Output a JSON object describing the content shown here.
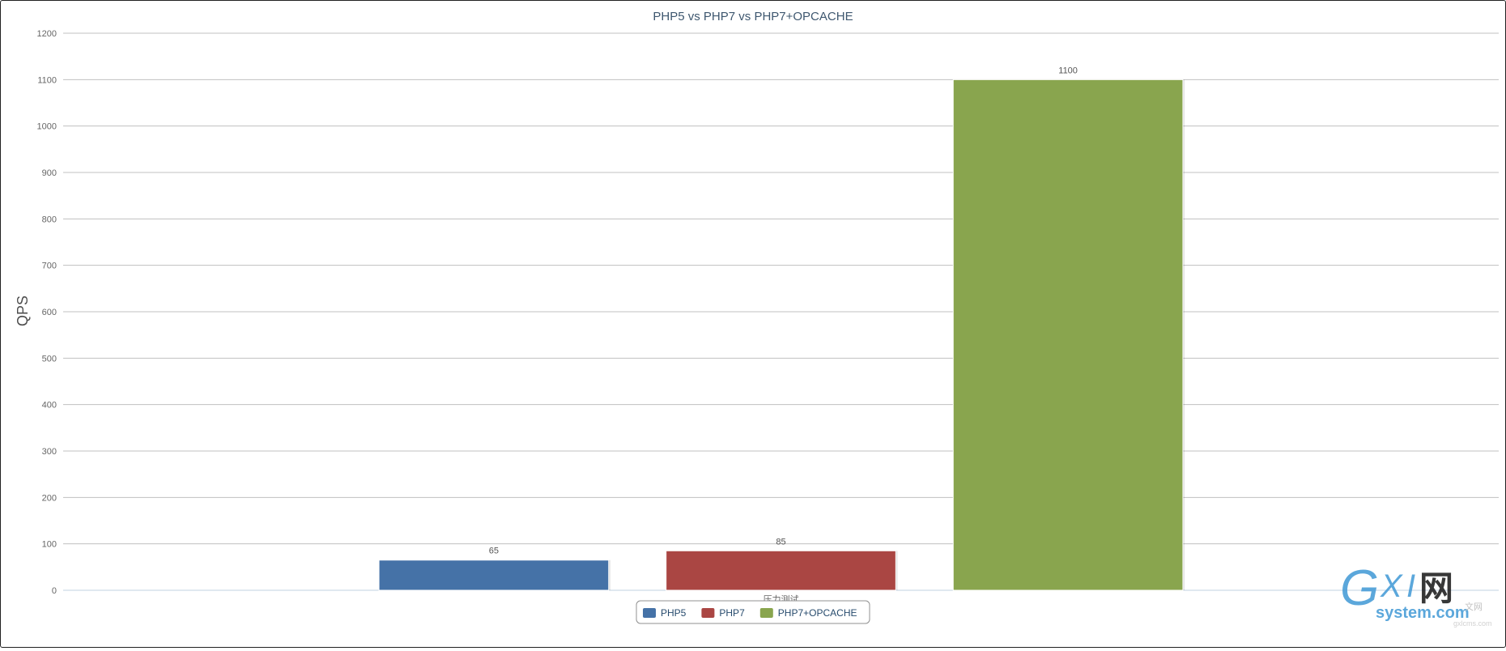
{
  "chart_data": {
    "type": "bar",
    "title": "PHP5 vs PHP7 vs PHP7+OPCACHE",
    "ylabel": "QPS",
    "xlabel": "",
    "categories": [
      "压力测试"
    ],
    "series": [
      {
        "name": "PHP5",
        "values": [
          65
        ],
        "color": "#4572A7"
      },
      {
        "name": "PHP7",
        "values": [
          85
        ],
        "color": "#AA4643"
      },
      {
        "name": "PHP7+OPCACHE",
        "values": [
          1100
        ],
        "color": "#89A54E"
      }
    ],
    "ylim": [
      0,
      1200
    ],
    "yticks": [
      0,
      100,
      200,
      300,
      400,
      500,
      600,
      700,
      800,
      900,
      1000,
      1100,
      1200
    ],
    "grid": true,
    "data_labels": true,
    "legend_position": "bottom-center"
  },
  "watermark": {
    "logo_text": "GXI网",
    "domain_text": "system.com",
    "small_text": "gxlcms.com"
  }
}
